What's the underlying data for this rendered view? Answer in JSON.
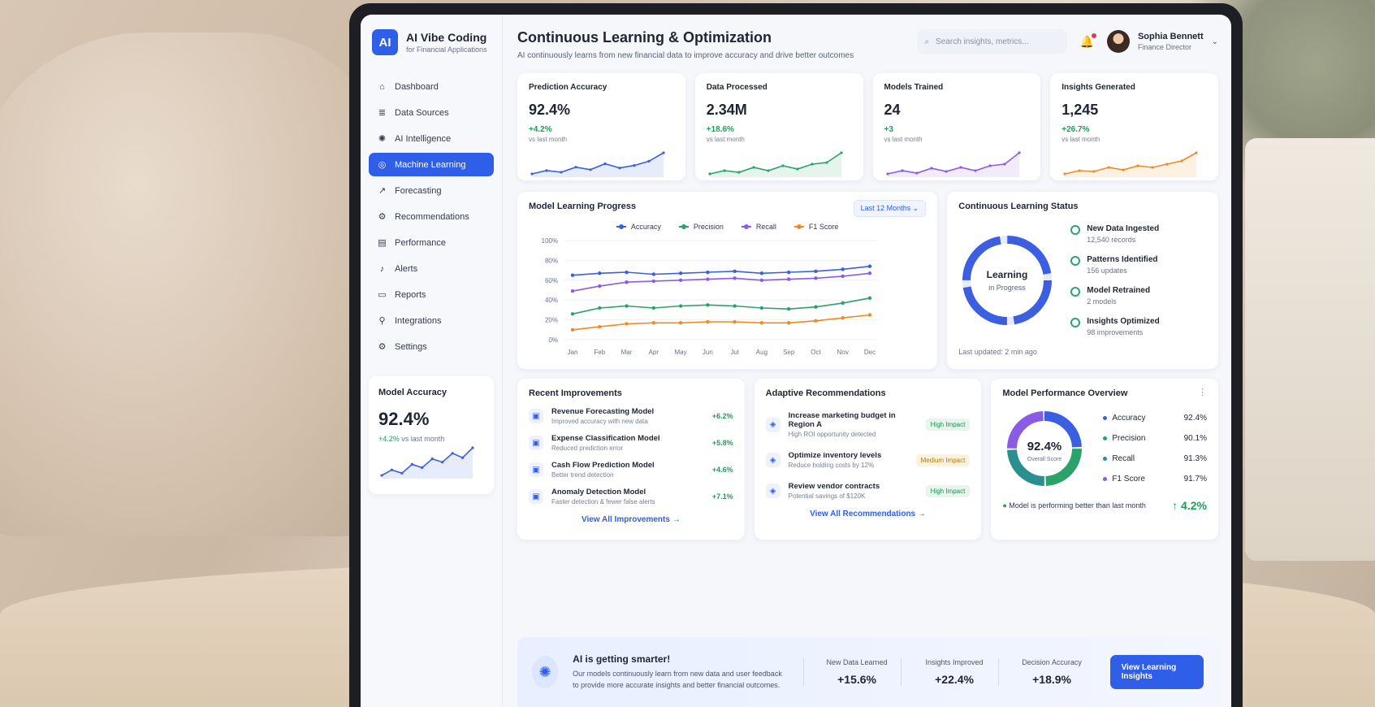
{
  "app": {
    "logo": "AI",
    "title": "AI Vibe Coding",
    "subtitle": "for Financial Applications"
  },
  "sidebar": {
    "items": [
      {
        "label": "Dashboard",
        "icon": "home-icon"
      },
      {
        "label": "Data Sources",
        "icon": "database-icon"
      },
      {
        "label": "AI Intelligence",
        "icon": "brain-icon"
      },
      {
        "label": "Machine Learning",
        "icon": "ml-icon",
        "active": true
      },
      {
        "label": "Forecasting",
        "icon": "trend-icon"
      },
      {
        "label": "Recommendations",
        "icon": "gear-icon"
      },
      {
        "label": "Performance",
        "icon": "chart-icon"
      },
      {
        "label": "Alerts",
        "icon": "bell-icon"
      },
      {
        "label": "Reports",
        "icon": "document-icon"
      },
      {
        "label": "Integrations",
        "icon": "plug-icon"
      },
      {
        "label": "Settings",
        "icon": "settings-icon"
      }
    ],
    "accuracy_card": {
      "label": "Model Accuracy",
      "value": "92.4%",
      "delta": "+4.2%",
      "vs": "vs last month",
      "trend": [
        40,
        45,
        42,
        50,
        47,
        55,
        52,
        60,
        56,
        65
      ]
    }
  },
  "header": {
    "title": "Continuous Learning & Optimization",
    "subtitle": "AI continuously learns from new financial data to improve accuracy and drive better outcomes",
    "search_placeholder": "Search insights, metrics...",
    "user": {
      "name": "Sophia Bennett",
      "role": "Finance Director"
    }
  },
  "stats": [
    {
      "label": "Prediction Accuracy",
      "value": "92.4%",
      "delta": "+4.2%",
      "vs": "vs last month",
      "color": "#3b5fe0",
      "trend": [
        20,
        24,
        22,
        28,
        25,
        32,
        27,
        30,
        35,
        45
      ]
    },
    {
      "label": "Data Processed",
      "value": "2.34M",
      "delta": "+18.6%",
      "vs": "vs last month",
      "color": "#2aa36b",
      "trend": [
        18,
        22,
        20,
        26,
        22,
        28,
        24,
        30,
        32,
        44
      ]
    },
    {
      "label": "Models Trained",
      "value": "24",
      "delta": "+3",
      "vs": "vs last month",
      "color": "#8a5ce6",
      "trend": [
        18,
        22,
        19,
        25,
        21,
        26,
        22,
        28,
        30,
        44
      ]
    },
    {
      "label": "Insights Generated",
      "value": "1,245",
      "delta": "+26.7%",
      "vs": "vs last month",
      "color": "#f08a24",
      "trend": [
        18,
        22,
        21,
        26,
        23,
        28,
        26,
        30,
        34,
        44
      ]
    }
  ],
  "learning_chart": {
    "title": "Model Learning Progress",
    "range": "Last 12 Months",
    "chart_data": {
      "type": "line",
      "categories": [
        "Jan",
        "Feb",
        "Mar",
        "Apr",
        "May",
        "Jun",
        "Jul",
        "Aug",
        "Sep",
        "Oct",
        "Nov",
        "Dec"
      ],
      "yticks": [
        "100%",
        "80%",
        "60%",
        "40%",
        "20%",
        "0%"
      ],
      "ylim": [
        0,
        100
      ],
      "series": [
        {
          "name": "Accuracy",
          "color": "#3b5fe0",
          "values": [
            65,
            67,
            68,
            66,
            67,
            68,
            69,
            67,
            68,
            69,
            71,
            74
          ]
        },
        {
          "name": "Precision",
          "color": "#2aa36b",
          "values": [
            26,
            32,
            34,
            32,
            34,
            35,
            34,
            32,
            31,
            33,
            37,
            42
          ]
        },
        {
          "name": "Recall",
          "color": "#8a5ce6",
          "values": [
            49,
            54,
            58,
            59,
            60,
            61,
            62,
            60,
            61,
            62,
            64,
            67
          ]
        },
        {
          "name": "F1 Score",
          "color": "#f08a24",
          "values": [
            10,
            13,
            16,
            17,
            17,
            18,
            18,
            17,
            17,
            19,
            22,
            25
          ]
        }
      ]
    }
  },
  "status": {
    "title": "Continuous Learning Status",
    "ring_title": "Learning",
    "ring_sub": "in Progress",
    "items": [
      {
        "name": "New Data Ingested",
        "value": "12,540 records"
      },
      {
        "name": "Patterns Identified",
        "value": "156 updates"
      },
      {
        "name": "Model Retrained",
        "value": "2 models"
      },
      {
        "name": "Insights Optimized",
        "value": "98 improvements"
      }
    ],
    "updated": "Last updated: 2 min ago"
  },
  "improvements": {
    "title": "Recent Improvements",
    "items": [
      {
        "name": "Revenue Forecasting Model",
        "desc": "Improved accuracy with new data",
        "value": "+6.2%"
      },
      {
        "name": "Expense Classification Model",
        "desc": "Reduced prediction error",
        "value": "+5.8%"
      },
      {
        "name": "Cash Flow Prediction Model",
        "desc": "Better trend detection",
        "value": "+4.6%"
      },
      {
        "name": "Anomaly Detection Model",
        "desc": "Faster detection & fewer false alerts",
        "value": "+7.1%"
      }
    ],
    "link": "View All Improvements"
  },
  "recommendations": {
    "title": "Adaptive Recommendations",
    "items": [
      {
        "name": "Increase marketing budget in Region A",
        "desc": "High ROI opportunity detected",
        "badge": "High Impact",
        "level": "high"
      },
      {
        "name": "Optimize inventory levels",
        "desc": "Reduce holding costs by 12%",
        "badge": "Medium Impact",
        "level": "med"
      },
      {
        "name": "Review vendor contracts",
        "desc": "Potential savings of $120K",
        "badge": "High Impact",
        "level": "high"
      }
    ],
    "link": "View All Recommendations"
  },
  "performance": {
    "title": "Model Performance Overview",
    "score": "92.4%",
    "score_label": "Overall Score",
    "items": [
      {
        "name": "Accuracy",
        "value": "92.4%",
        "color": "#3b5fe0"
      },
      {
        "name": "Precision",
        "value": "90.1%",
        "color": "#2aa36b"
      },
      {
        "name": "Recall",
        "value": "91.3%",
        "color": "#2a8f8f"
      },
      {
        "name": "F1 Score",
        "value": "91.7%",
        "color": "#8a5ce6"
      }
    ],
    "foot_text": "Model is performing better than last month",
    "foot_value": "↑ 4.2%"
  },
  "banner": {
    "title": "AI is getting smarter!",
    "desc": "Our models continuously learn from new data and user feedback to provide more accurate insights and better financial outcomes.",
    "stats": [
      {
        "label": "New Data Learned",
        "value": "+15.6%"
      },
      {
        "label": "Insights Improved",
        "value": "+22.4%"
      },
      {
        "label": "Decision Accuracy",
        "value": "+18.9%"
      }
    ],
    "button": "View Learning Insights"
  }
}
